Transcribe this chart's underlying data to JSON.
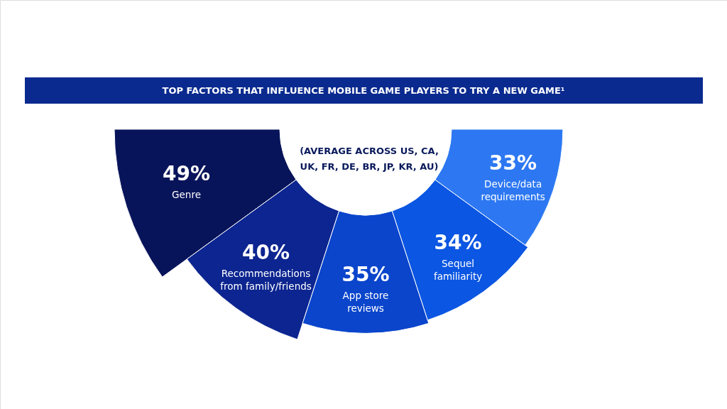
{
  "chart_data": {
    "type": "other",
    "title": "TOP FACTORS THAT INFLUENCE MOBILE GAME PLAYERS TO TRY A NEW GAME¹",
    "subtitle": "(AVERAGE ACROSS US, CA,\nUK, FR, DE, BR, JP, KR, AU)",
    "categories": [
      "Genre",
      "Recommendations\nfrom family/friends",
      "App store\nreviews",
      "Sequel\nfamiliarity",
      "Device/data\nrequirements"
    ],
    "values": [
      49,
      40,
      35,
      34,
      33
    ],
    "value_labels": [
      "49%",
      "40%",
      "35%",
      "34%",
      "33%"
    ],
    "colors": [
      "#08145a",
      "#0c2590",
      "#0a45cc",
      "#0b56e2",
      "#2d78f2"
    ]
  }
}
